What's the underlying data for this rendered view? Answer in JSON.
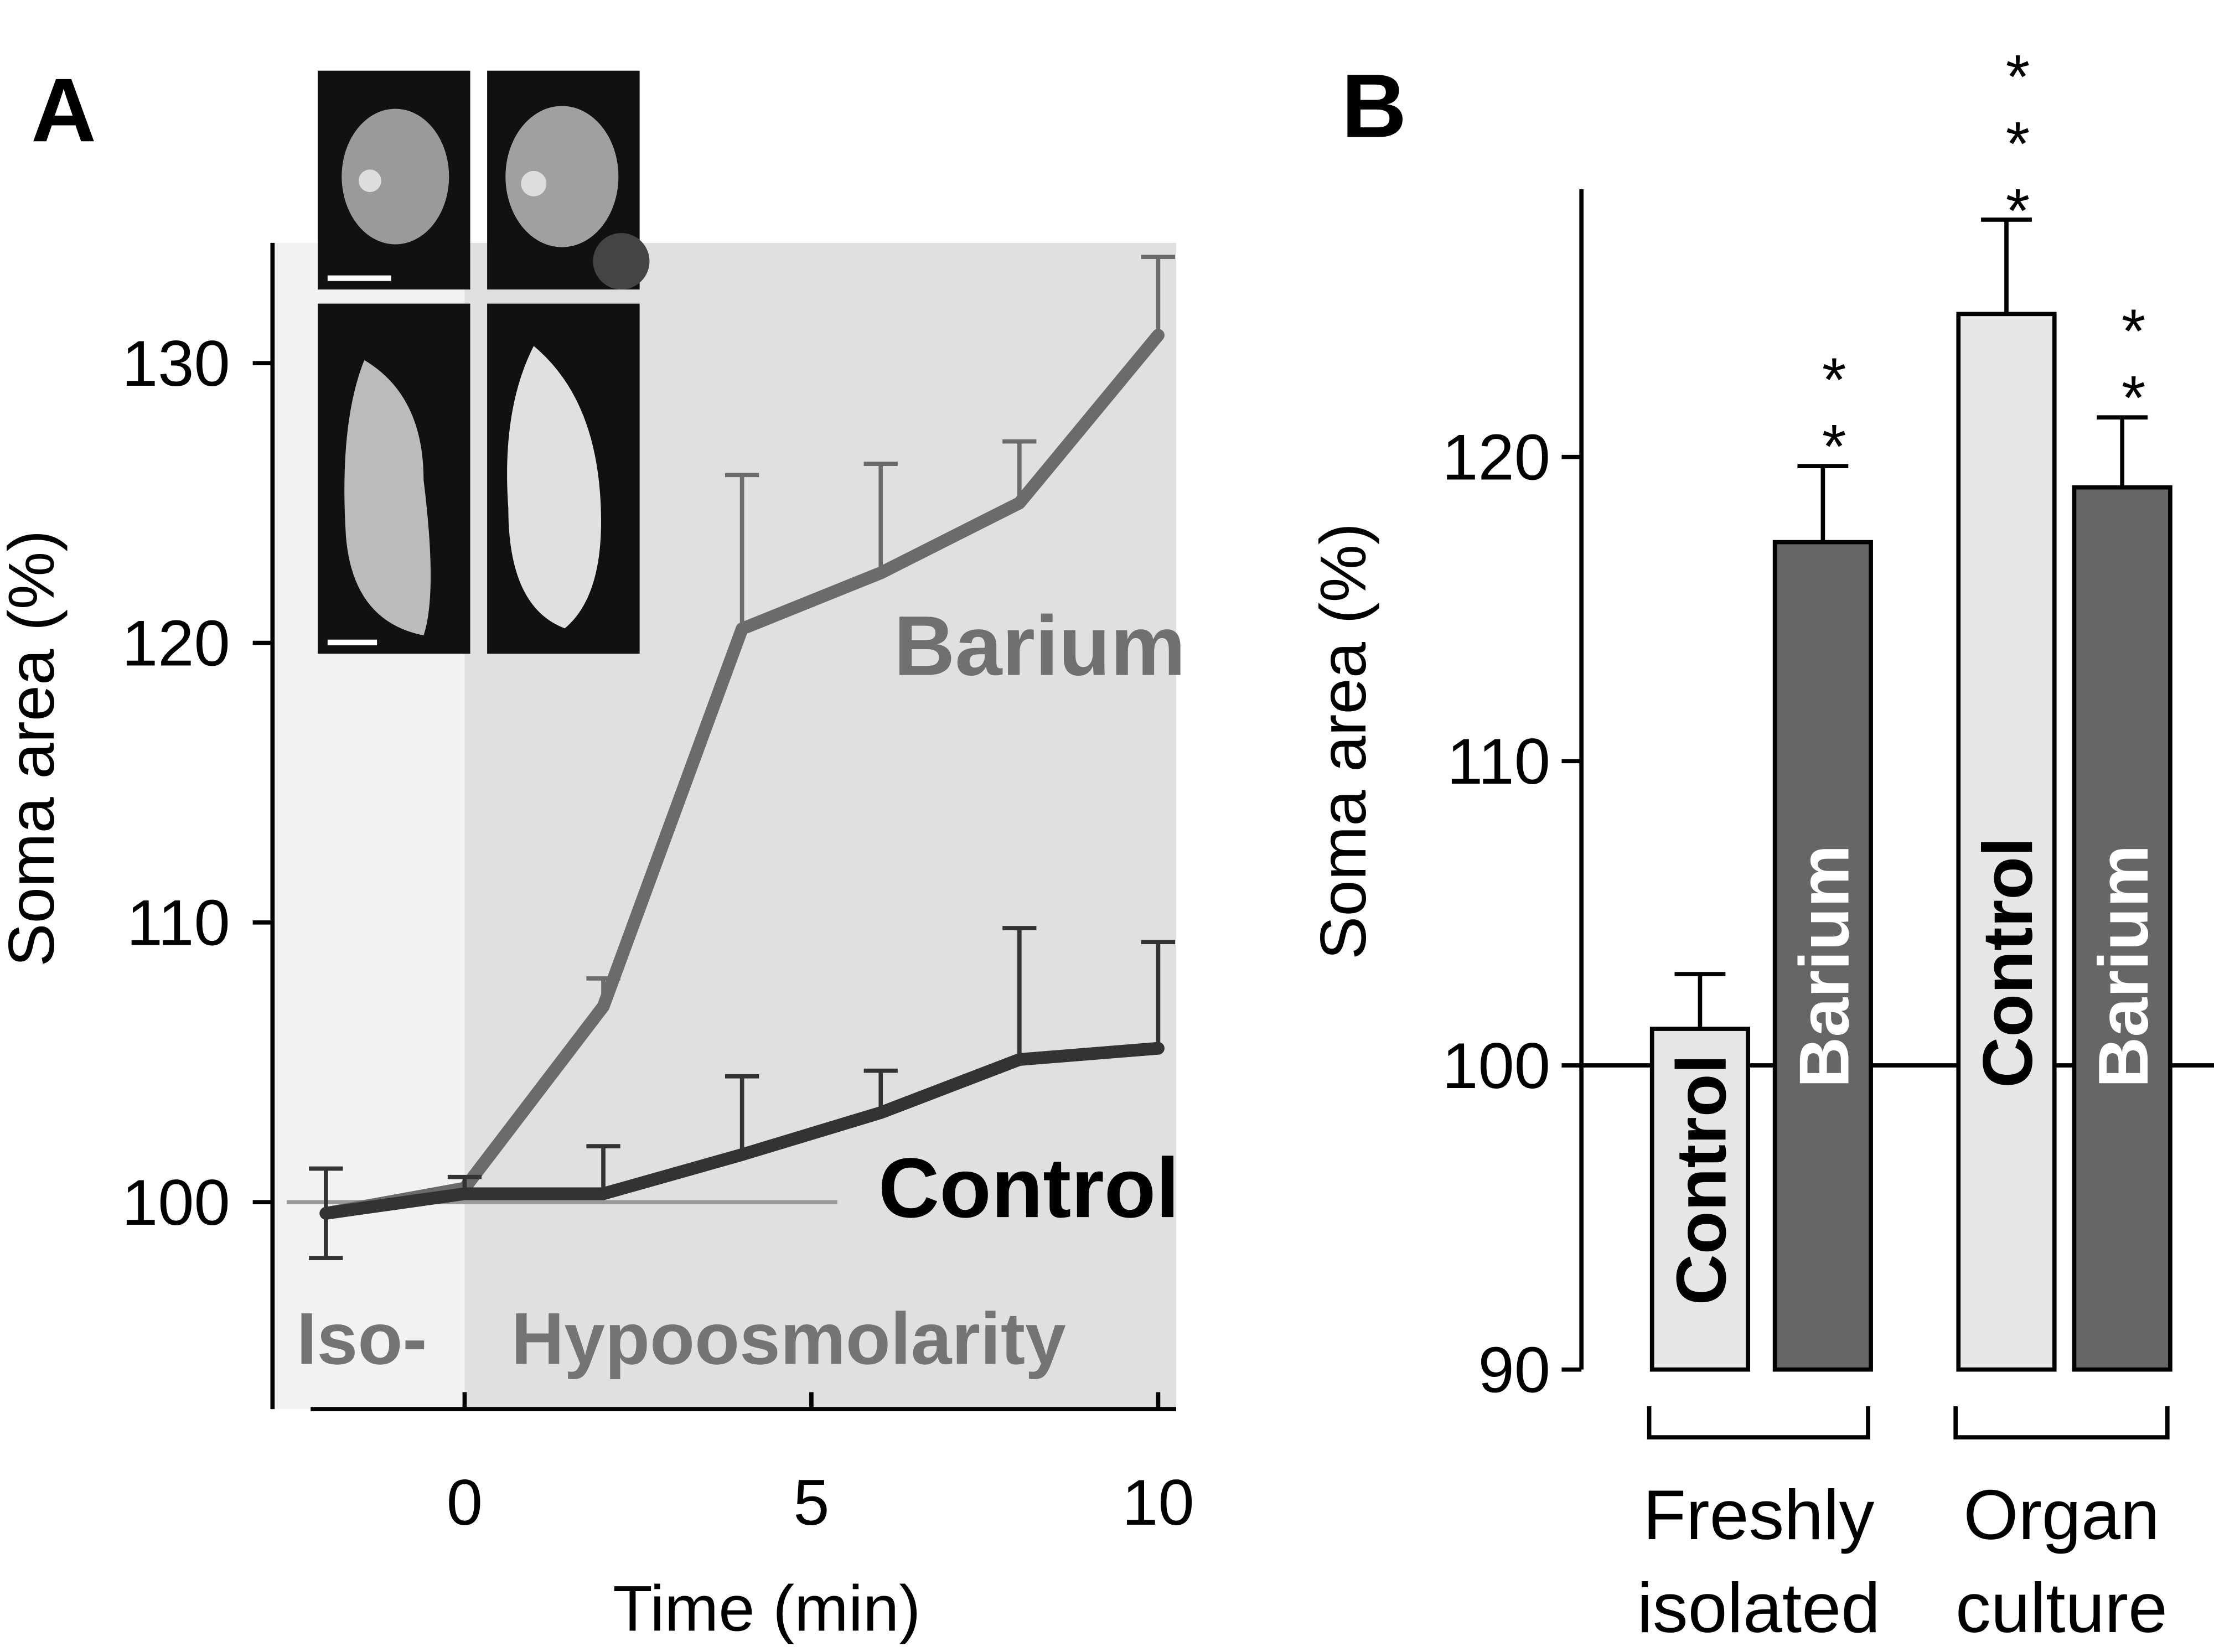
{
  "chart_data": [
    {
      "type": "line",
      "panel_label": "A",
      "xlabel": "Time (min)",
      "ylabel": "Soma area (%)",
      "x": [
        -2,
        0,
        2,
        4,
        6,
        8,
        10
      ],
      "series": [
        {
          "name": "Barium",
          "color": "#6b6b6b",
          "values": [
            99.6,
            100.5,
            107,
            120.5,
            122.5,
            125,
            131
          ],
          "errors": [
            null,
            null,
            1.0,
            5.5,
            3.9,
            2.2,
            2.8
          ]
        },
        {
          "name": "Control",
          "color": "#333333",
          "values": [
            99.6,
            100.3,
            100.3,
            101.7,
            103.2,
            105.1,
            105.5
          ],
          "errors": [
            1.6,
            0.6,
            1.7,
            2.8,
            1.5,
            4.7,
            3.8
          ]
        }
      ],
      "annotations": [
        "Iso-",
        "Hypoosmolarity"
      ],
      "reference_line": 100,
      "xlim": [
        -2.77,
        10.26
      ],
      "ylim": [
        92.6,
        134.3
      ],
      "xticks": [
        0,
        5,
        10
      ],
      "yticks": [
        100,
        110,
        120,
        130
      ]
    },
    {
      "type": "bar",
      "panel_label": "B",
      "ylabel": "Soma area (%)",
      "categories": [
        "Control",
        "Barium",
        "Control",
        "Barium"
      ],
      "values": [
        101.2,
        117.2,
        124.7,
        119.0
      ],
      "errors": [
        1.8,
        2.5,
        3.1,
        2.3
      ],
      "colors": [
        "#e6e6e6",
        "#666666",
        "#e6e6e6",
        "#666666"
      ],
      "significance": [
        null,
        "**",
        "***",
        "**"
      ],
      "groups": [
        [
          "Freshly",
          "isolated"
        ],
        [
          "Organ",
          "culture"
        ]
      ],
      "reference_line": 100,
      "ylim": [
        90,
        128.8
      ],
      "yticks": [
        90,
        100,
        110,
        120
      ]
    }
  ]
}
